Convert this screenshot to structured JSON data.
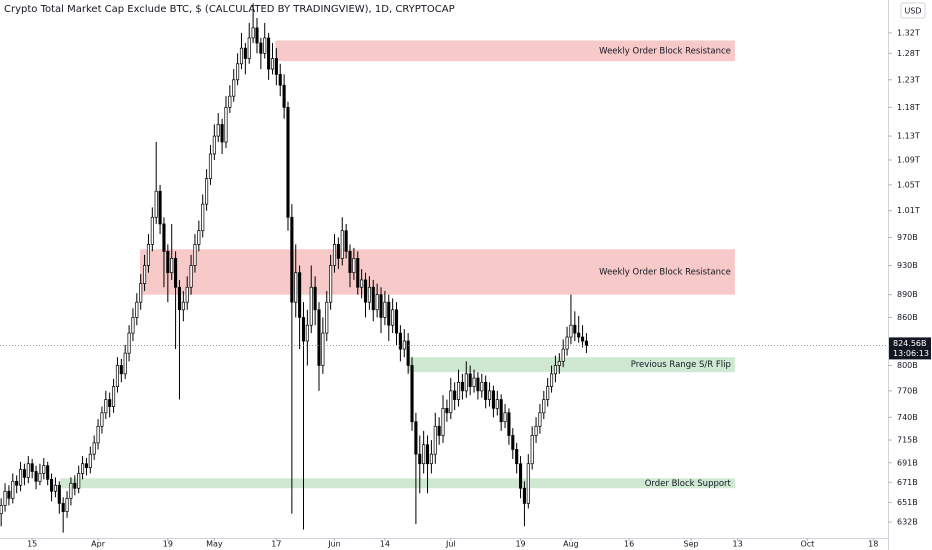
{
  "chart_data": {
    "type": "candlestick",
    "title": "Crypto Total Market Cap Exclude BTC, $ (CALCULATED BY TRADINGVIEW), 1D, CRYPTOCAP",
    "currency": "USD",
    "log": true,
    "up_color": "#ffffff",
    "down_color": "#000000",
    "edge_color": "#000000",
    "xlim": [
      65.7,
      294.8
    ],
    "ylim": [
      617,
      1387
    ],
    "xticks": [
      {
        "value": 74,
        "label": "15"
      },
      {
        "value": 91,
        "label": "Apr"
      },
      {
        "value": 109,
        "label": "19"
      },
      {
        "value": 121,
        "label": "May"
      },
      {
        "value": 137,
        "label": "17"
      },
      {
        "value": 152,
        "label": "Jun"
      },
      {
        "value": 165,
        "label": "14"
      },
      {
        "value": 182,
        "label": "Jul"
      },
      {
        "value": 200,
        "label": "19"
      },
      {
        "value": 213,
        "label": "Aug"
      },
      {
        "value": 228,
        "label": "16"
      },
      {
        "value": 244,
        "label": "Sep"
      },
      {
        "value": 256,
        "label": "13"
      },
      {
        "value": 274,
        "label": "Oct"
      },
      {
        "value": 291,
        "label": "18"
      }
    ],
    "yticks": [
      {
        "value": 632,
        "label": "632B"
      },
      {
        "value": 651,
        "label": "651B"
      },
      {
        "value": 671,
        "label": "671B"
      },
      {
        "value": 691,
        "label": "691B"
      },
      {
        "value": 715,
        "label": "715B"
      },
      {
        "value": 740,
        "label": "740B"
      },
      {
        "value": 770,
        "label": "770B"
      },
      {
        "value": 800,
        "label": "800B"
      },
      {
        "value": 860,
        "label": "860B"
      },
      {
        "value": 890,
        "label": "890B"
      },
      {
        "value": 930,
        "label": "930B"
      },
      {
        "value": 970,
        "label": "970B"
      },
      {
        "value": 1010,
        "label": "1.01T"
      },
      {
        "value": 1050,
        "label": "1.05T"
      },
      {
        "value": 1090,
        "label": "1.09T"
      },
      {
        "value": 1130,
        "label": "1.13T"
      },
      {
        "value": 1180,
        "label": "1.18T"
      },
      {
        "value": 1230,
        "label": "1.23T"
      },
      {
        "value": 1280,
        "label": "1.28T"
      },
      {
        "value": 1320,
        "label": "1.32T"
      }
    ],
    "zones": [
      {
        "label": "Weekly Order Block Resistance",
        "from": 136.7,
        "to": 255.3,
        "low": 1265,
        "high": 1305,
        "color": "#f8c9c9"
      },
      {
        "label": "Weekly Order Block Resistance",
        "from": 101.8,
        "to": 255.3,
        "low": 890,
        "high": 953,
        "color": "#f8c9c9"
      },
      {
        "label": "Previous Range S/R Flip",
        "from": 171,
        "to": 255.3,
        "low": 792,
        "high": 810,
        "color": "#cfe8d2"
      },
      {
        "label": "Order Block Support",
        "from": 81.2,
        "to": 255.3,
        "low": 665,
        "high": 675,
        "color": "#cfe8d2"
      }
    ],
    "last_price": {
      "value": 824.56,
      "label": "824.56B",
      "countdown": "13:06:13"
    },
    "x": [
      66,
      67,
      68,
      69,
      70,
      71,
      72,
      73,
      74,
      75,
      76,
      77,
      78,
      79,
      80,
      81,
      82,
      83,
      84,
      85,
      86,
      87,
      88,
      89,
      90,
      91,
      92,
      93,
      94,
      95,
      96,
      97,
      98,
      99,
      100,
      101,
      102,
      103,
      104,
      105,
      106,
      107,
      108,
      109,
      110,
      111,
      112,
      113,
      114,
      115,
      116,
      117,
      118,
      119,
      120,
      121,
      122,
      123,
      124,
      125,
      126,
      127,
      128,
      129,
      130,
      131,
      132,
      133,
      134,
      135,
      136,
      137,
      138,
      139,
      140,
      141,
      142,
      143,
      144,
      145,
      146,
      147,
      148,
      149,
      150,
      151,
      152,
      153,
      154,
      155,
      156,
      157,
      158,
      159,
      160,
      161,
      162,
      163,
      164,
      165,
      166,
      167,
      168,
      169,
      170,
      171,
      172,
      173,
      174,
      175,
      176,
      177,
      178,
      179,
      180,
      181,
      182,
      183,
      184,
      185,
      186,
      187,
      188,
      189,
      190,
      191,
      192,
      193,
      194,
      195,
      196,
      197,
      198,
      199,
      200,
      201,
      202,
      203,
      204,
      205,
      206,
      207,
      208,
      209,
      210,
      211,
      212,
      213,
      214,
      215,
      216,
      217
    ],
    "ohlc": [
      [
        640,
        655,
        628,
        648
      ],
      [
        648,
        670,
        642,
        662
      ],
      [
        662,
        668,
        648,
        655
      ],
      [
        655,
        680,
        650,
        672
      ],
      [
        672,
        678,
        660,
        668
      ],
      [
        668,
        692,
        662,
        684
      ],
      [
        684,
        690,
        668,
        676
      ],
      [
        676,
        698,
        670,
        690
      ],
      [
        690,
        695,
        675,
        682
      ],
      [
        682,
        688,
        664,
        672
      ],
      [
        672,
        690,
        668,
        680
      ],
      [
        680,
        696,
        674,
        688
      ],
      [
        688,
        692,
        668,
        674
      ],
      [
        674,
        680,
        652,
        662
      ],
      [
        662,
        676,
        656,
        668
      ],
      [
        668,
        672,
        640,
        650
      ],
      [
        650,
        656,
        622,
        642
      ],
      [
        642,
        662,
        636,
        655
      ],
      [
        655,
        676,
        648,
        670
      ],
      [
        670,
        678,
        658,
        665
      ],
      [
        665,
        688,
        660,
        680
      ],
      [
        680,
        698,
        674,
        690
      ],
      [
        690,
        696,
        678,
        686
      ],
      [
        686,
        708,
        680,
        700
      ],
      [
        700,
        720,
        694,
        712
      ],
      [
        712,
        738,
        705,
        730
      ],
      [
        730,
        752,
        722,
        745
      ],
      [
        745,
        770,
        738,
        760
      ],
      [
        760,
        768,
        740,
        752
      ],
      [
        752,
        784,
        745,
        775
      ],
      [
        775,
        810,
        768,
        800
      ],
      [
        800,
        808,
        780,
        790
      ],
      [
        790,
        825,
        784,
        815
      ],
      [
        815,
        850,
        805,
        840
      ],
      [
        840,
        872,
        830,
        860
      ],
      [
        860,
        892,
        850,
        880
      ],
      [
        880,
        918,
        870,
        905
      ],
      [
        905,
        945,
        895,
        930
      ],
      [
        930,
        975,
        920,
        960
      ],
      [
        960,
        1015,
        950,
        1000
      ],
      [
        1000,
        1120,
        990,
        1040
      ],
      [
        1040,
        1050,
        975,
        990
      ],
      [
        990,
        1000,
        900,
        950
      ],
      [
        950,
        960,
        880,
        920
      ],
      [
        920,
        990,
        910,
        940
      ],
      [
        940,
        950,
        820,
        900
      ],
      [
        900,
        910,
        760,
        870
      ],
      [
        870,
        895,
        855,
        880
      ],
      [
        880,
        915,
        870,
        900
      ],
      [
        900,
        945,
        890,
        930
      ],
      [
        930,
        975,
        920,
        960
      ],
      [
        960,
        995,
        950,
        980
      ],
      [
        980,
        1035,
        970,
        1020
      ],
      [
        1020,
        1075,
        1010,
        1060
      ],
      [
        1060,
        1115,
        1050,
        1100
      ],
      [
        1100,
        1150,
        1090,
        1130
      ],
      [
        1130,
        1170,
        1120,
        1150
      ],
      [
        1150,
        1160,
        1100,
        1120
      ],
      [
        1120,
        1200,
        1110,
        1180
      ],
      [
        1180,
        1220,
        1170,
        1200
      ],
      [
        1200,
        1250,
        1190,
        1230
      ],
      [
        1230,
        1280,
        1220,
        1260
      ],
      [
        1260,
        1320,
        1250,
        1290
      ],
      [
        1290,
        1300,
        1240,
        1270
      ],
      [
        1270,
        1340,
        1260,
        1310
      ],
      [
        1310,
        1380,
        1300,
        1330
      ],
      [
        1330,
        1350,
        1280,
        1300
      ],
      [
        1300,
        1310,
        1250,
        1280
      ],
      [
        1280,
        1340,
        1270,
        1310
      ],
      [
        1310,
        1320,
        1230,
        1250
      ],
      [
        1250,
        1300,
        1240,
        1270
      ],
      [
        1270,
        1290,
        1220,
        1240
      ],
      [
        1240,
        1260,
        1200,
        1220
      ],
      [
        1220,
        1240,
        1160,
        1180
      ],
      [
        1180,
        1190,
        980,
        1000
      ],
      [
        1000,
        1020,
        640,
        880
      ],
      [
        880,
        960,
        860,
        920
      ],
      [
        920,
        930,
        820,
        860
      ],
      [
        860,
        880,
        625,
        830
      ],
      [
        830,
        870,
        800,
        850
      ],
      [
        850,
        930,
        840,
        900
      ],
      [
        900,
        915,
        850,
        870
      ],
      [
        870,
        880,
        770,
        800
      ],
      [
        800,
        860,
        790,
        840
      ],
      [
        840,
        895,
        830,
        880
      ],
      [
        880,
        945,
        870,
        930
      ],
      [
        930,
        975,
        920,
        960
      ],
      [
        960,
        970,
        925,
        940
      ],
      [
        940,
        1000,
        930,
        980
      ],
      [
        980,
        990,
        940,
        950
      ],
      [
        950,
        960,
        900,
        920
      ],
      [
        920,
        955,
        910,
        940
      ],
      [
        940,
        950,
        890,
        900
      ],
      [
        900,
        925,
        885,
        910
      ],
      [
        910,
        920,
        860,
        880
      ],
      [
        880,
        915,
        870,
        900
      ],
      [
        900,
        910,
        855,
        870
      ],
      [
        870,
        905,
        860,
        890
      ],
      [
        890,
        900,
        840,
        860
      ],
      [
        860,
        895,
        850,
        880
      ],
      [
        880,
        890,
        830,
        850
      ],
      [
        850,
        885,
        840,
        870
      ],
      [
        870,
        880,
        825,
        840
      ],
      [
        840,
        850,
        805,
        820
      ],
      [
        820,
        845,
        810,
        830
      ],
      [
        830,
        840,
        790,
        800
      ],
      [
        800,
        810,
        725,
        735
      ],
      [
        735,
        745,
        630,
        700
      ],
      [
        700,
        720,
        660,
        690
      ],
      [
        690,
        725,
        680,
        710
      ],
      [
        710,
        720,
        660,
        690
      ],
      [
        690,
        715,
        680,
        700
      ],
      [
        700,
        745,
        690,
        730
      ],
      [
        730,
        740,
        710,
        720
      ],
      [
        720,
        765,
        712,
        750
      ],
      [
        750,
        760,
        735,
        745
      ],
      [
        745,
        785,
        738,
        770
      ],
      [
        770,
        780,
        748,
        760
      ],
      [
        760,
        795,
        752,
        780
      ],
      [
        780,
        790,
        760,
        770
      ],
      [
        770,
        805,
        762,
        790
      ],
      [
        790,
        800,
        765,
        775
      ],
      [
        775,
        795,
        768,
        785
      ],
      [
        785,
        792,
        760,
        770
      ],
      [
        770,
        790,
        762,
        780
      ],
      [
        780,
        788,
        750,
        760
      ],
      [
        760,
        780,
        752,
        770
      ],
      [
        770,
        776,
        740,
        750
      ],
      [
        750,
        770,
        742,
        760
      ],
      [
        760,
        766,
        725,
        735
      ],
      [
        735,
        755,
        728,
        745
      ],
      [
        745,
        750,
        710,
        720
      ],
      [
        720,
        728,
        695,
        705
      ],
      [
        705,
        712,
        680,
        690
      ],
      [
        690,
        698,
        655,
        665
      ],
      [
        665,
        672,
        628,
        650
      ],
      [
        650,
        700,
        645,
        690
      ],
      [
        690,
        730,
        684,
        720
      ],
      [
        720,
        740,
        712,
        730
      ],
      [
        730,
        755,
        722,
        745
      ],
      [
        745,
        770,
        738,
        760
      ],
      [
        760,
        785,
        752,
        775
      ],
      [
        775,
        800,
        768,
        790
      ],
      [
        790,
        812,
        780,
        800
      ],
      [
        800,
        815,
        790,
        805
      ],
      [
        805,
        832,
        798,
        820
      ],
      [
        820,
        848,
        812,
        835
      ],
      [
        835,
        890,
        826,
        850
      ],
      [
        850,
        868,
        830,
        840
      ],
      [
        840,
        862,
        828,
        835
      ],
      [
        835,
        850,
        822,
        830
      ],
      [
        830,
        840,
        815,
        824.56
      ]
    ]
  }
}
